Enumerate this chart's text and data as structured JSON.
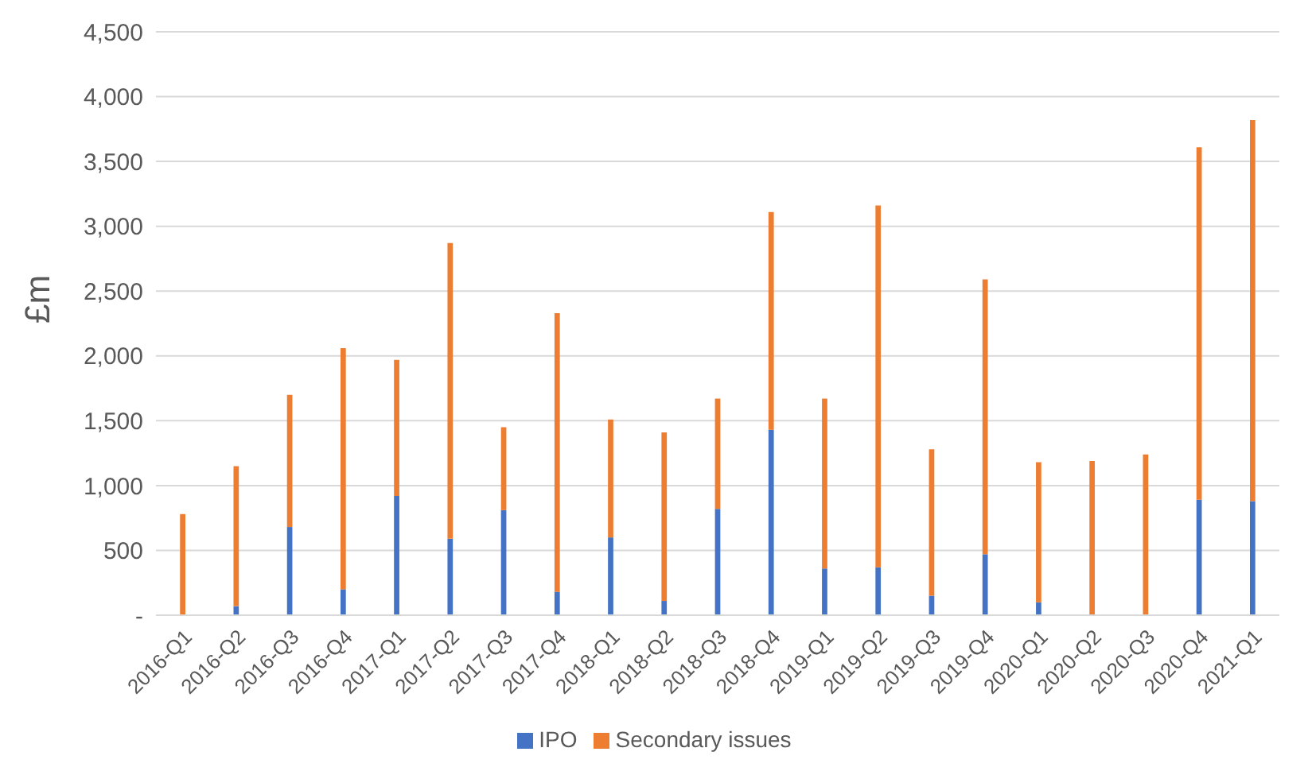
{
  "chart_data": {
    "type": "bar",
    "stacked": true,
    "ylabel": "£m",
    "categories": [
      "2016-Q1",
      "2016-Q2",
      "2016-Q3",
      "2016-Q4",
      "2017-Q1",
      "2017-Q2",
      "2017-Q3",
      "2017-Q4",
      "2018-Q1",
      "2018-Q2",
      "2018-Q3",
      "2018-Q4",
      "2019-Q1",
      "2019-Q2",
      "2019-Q3",
      "2019-Q4",
      "2020-Q1",
      "2020-Q2",
      "2020-Q3",
      "2020-Q4",
      "2021-Q1"
    ],
    "series": [
      {
        "name": "IPO",
        "color": "#4472c4",
        "values": [
          0,
          70,
          680,
          200,
          920,
          590,
          810,
          180,
          600,
          110,
          820,
          1430,
          360,
          370,
          150,
          470,
          100,
          0,
          0,
          890,
          880
        ]
      },
      {
        "name": "Secondary issues",
        "color": "#ed7d31",
        "values": [
          780,
          1080,
          1020,
          1860,
          1050,
          2280,
          640,
          2150,
          910,
          1300,
          850,
          1680,
          1310,
          2790,
          1130,
          2120,
          1080,
          1190,
          1240,
          2720,
          2940
        ]
      }
    ],
    "ylim": [
      0,
      4500
    ],
    "yticks": [
      {
        "value": 0,
        "label": "-"
      },
      500,
      {
        "value": 1000,
        "label": "1,000"
      },
      {
        "value": 1500,
        "label": "1,500"
      },
      {
        "value": 2000,
        "label": "2,000"
      },
      {
        "value": 2500,
        "label": "2,500"
      },
      {
        "value": 3000,
        "label": "3,000"
      },
      {
        "value": 3500,
        "label": "3,500"
      },
      {
        "value": 4000,
        "label": "4,000"
      },
      {
        "value": 4500,
        "label": "4,500"
      }
    ],
    "grid": "y",
    "legend": "bottom"
  }
}
